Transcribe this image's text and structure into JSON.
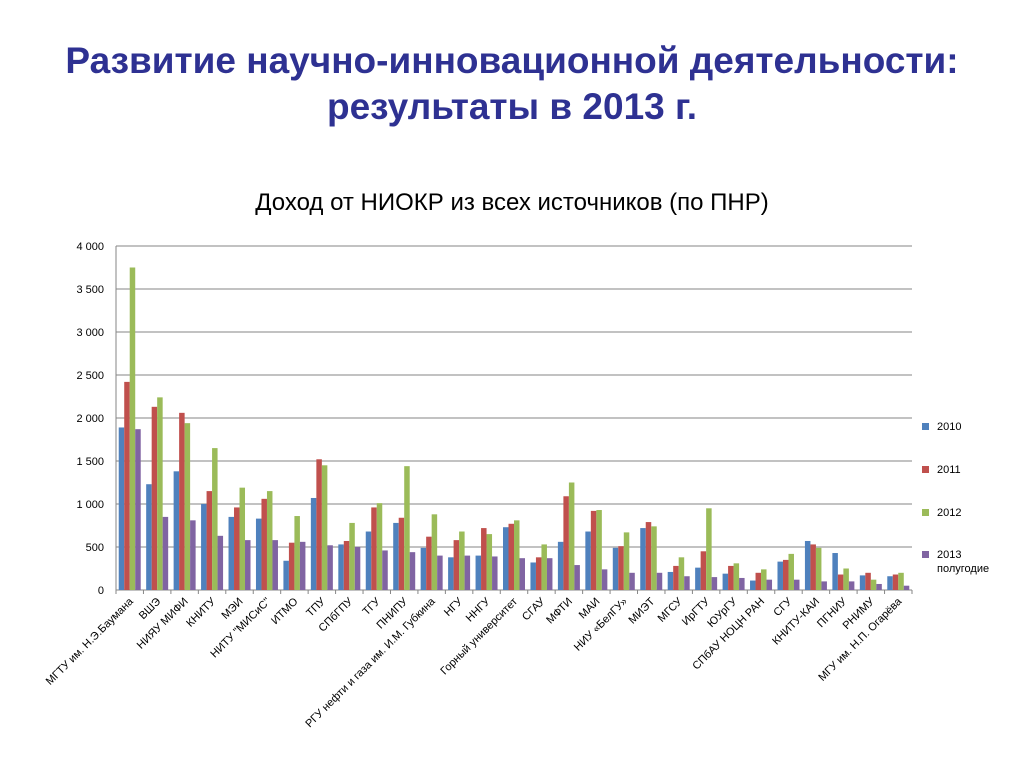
{
  "slide": {
    "title_line1": "Развитие научно-инновационной деятельности:",
    "title_line2": "результаты в 2013 г."
  },
  "chart_data": {
    "type": "bar",
    "title": "Доход от НИОКР из всех источников (по ПНР)",
    "ylim": [
      0,
      4000
    ],
    "yticks": [
      0,
      500,
      1000,
      1500,
      2000,
      2500,
      3000,
      3500,
      4000
    ],
    "ytick_labels": [
      "0",
      "500",
      "1 000",
      "1 500",
      "2 000",
      "2 500",
      "3 000",
      "3 500",
      "4 000"
    ],
    "grid": true,
    "legend_position": "right",
    "categories": [
      "МГТУ им. Н.Э.Баумана",
      "ВШЭ",
      "НИЯУ МИФИ",
      "КНИТУ",
      "МЭИ",
      "НИТУ \"МИСиС\"",
      "ИТМО",
      "ТПУ",
      "СПбГПУ",
      "ТГУ",
      "ПНИПУ",
      "РГУ нефти и газа им. И.М. Губкина",
      "НГУ",
      "ННГУ",
      "Горный университет",
      "СГАУ",
      "МФТИ",
      "МАИ",
      "НИУ «БелГУ»",
      "МИЭТ",
      "МГСУ",
      "ИрГТУ",
      "ЮУрГУ",
      "СПбАУ НОЦН РАН",
      "СГУ",
      "КНИТУ-КАИ",
      "ПГНИУ",
      "РНИМУ",
      "МГУ им. Н.П. Огарёва"
    ],
    "series": [
      {
        "name": "2010",
        "color": "#4f81bd",
        "values": [
          1890,
          1230,
          1380,
          1000,
          850,
          830,
          340,
          1070,
          530,
          680,
          780,
          490,
          380,
          400,
          730,
          320,
          560,
          680,
          490,
          720,
          210,
          260,
          190,
          110,
          330,
          570,
          430,
          170,
          160
        ]
      },
      {
        "name": "2011",
        "color": "#c0504d",
        "values": [
          2420,
          2130,
          2060,
          1150,
          960,
          1060,
          550,
          1520,
          570,
          960,
          840,
          620,
          580,
          720,
          770,
          380,
          1090,
          920,
          510,
          790,
          280,
          450,
          280,
          200,
          350,
          530,
          180,
          200,
          180
        ]
      },
      {
        "name": "2012",
        "color": "#9bbb59",
        "values": [
          3750,
          2240,
          1940,
          1650,
          1190,
          1150,
          860,
          1450,
          780,
          1010,
          1440,
          880,
          680,
          650,
          810,
          530,
          1250,
          930,
          670,
          740,
          380,
          950,
          310,
          240,
          420,
          490,
          250,
          120,
          200
        ]
      },
      {
        "name": "2013",
        "label_line2": "полугодие",
        "color": "#8064a2",
        "values": [
          1870,
          850,
          810,
          630,
          580,
          580,
          560,
          520,
          500,
          460,
          440,
          400,
          400,
          390,
          370,
          370,
          290,
          240,
          200,
          200,
          160,
          150,
          140,
          120,
          120,
          100,
          100,
          70,
          50
        ]
      }
    ]
  }
}
